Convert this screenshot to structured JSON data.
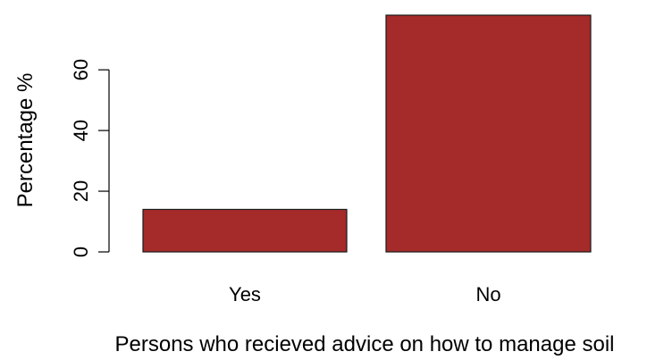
{
  "chart_data": {
    "type": "bar",
    "categories": [
      "Yes",
      "No"
    ],
    "values": [
      14,
      78
    ],
    "title": "",
    "xlabel": "Persons who recieved advice on how to manage soil",
    "ylabel": "Percentage %",
    "ylim": [
      0,
      78
    ],
    "yticks": [
      0,
      20,
      40,
      60
    ],
    "grid": false,
    "bar_color": "#a52a2a"
  }
}
